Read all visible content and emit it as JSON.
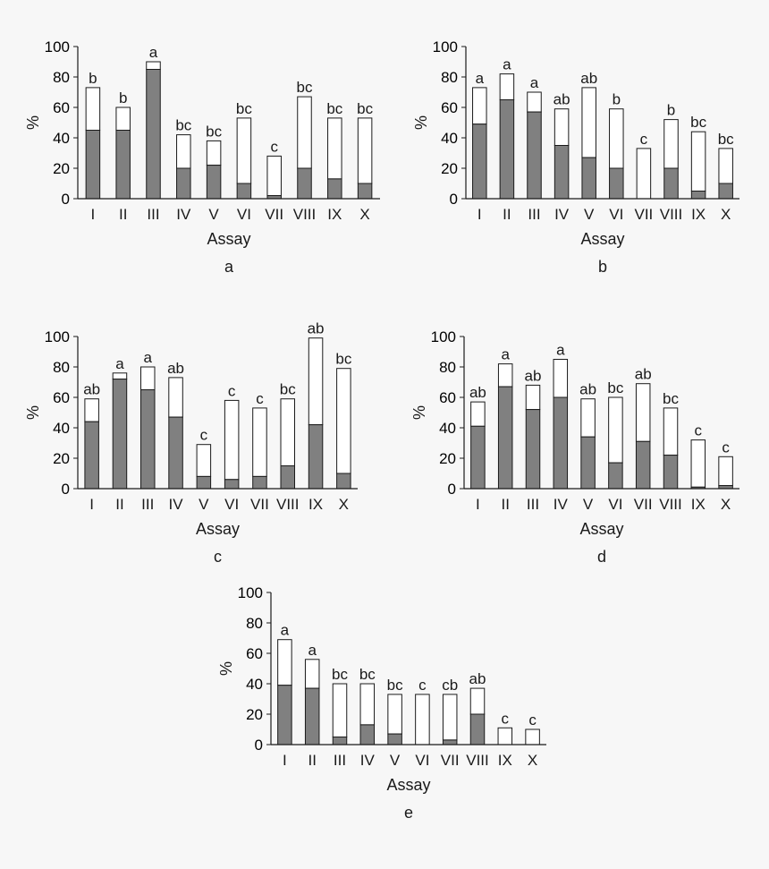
{
  "colors": {
    "background": "#f7f7f7",
    "dark_fill": "#808080",
    "light_fill": "#ffffff",
    "stroke": "#1a1a1a"
  },
  "chart_data": [
    {
      "type": "bar",
      "stacked": true,
      "panel_label": "a",
      "xlabel": "Assay",
      "ylabel": "%",
      "ylim": [
        0,
        100
      ],
      "yticks": [
        0,
        20,
        40,
        60,
        80,
        100
      ],
      "categories": [
        "I",
        "II",
        "III",
        "IV",
        "V",
        "VI",
        "VII",
        "VIII",
        "IX",
        "X"
      ],
      "series": [
        {
          "values": [
            45,
            45,
            85,
            20,
            22,
            10,
            2,
            20,
            13,
            10
          ]
        },
        {
          "values": [
            28,
            15,
            5,
            22,
            16,
            43,
            26,
            47,
            40,
            43
          ]
        }
      ],
      "totals": [
        73,
        60,
        90,
        42,
        38,
        53,
        28,
        67,
        53,
        53
      ],
      "significance_letters": [
        "b",
        "b",
        "a",
        "bc",
        "bc",
        "bc",
        "c",
        "bc",
        "bc",
        "bc"
      ]
    },
    {
      "type": "bar",
      "stacked": true,
      "panel_label": "b",
      "xlabel": "Assay",
      "ylabel": "%",
      "ylim": [
        0,
        100
      ],
      "yticks": [
        0,
        20,
        40,
        60,
        80,
        100
      ],
      "categories": [
        "I",
        "II",
        "III",
        "IV",
        "V",
        "VI",
        "VII",
        "VIII",
        "IX",
        "X"
      ],
      "series": [
        {
          "values": [
            49,
            65,
            57,
            35,
            27,
            20,
            0,
            20,
            5,
            10
          ]
        },
        {
          "values": [
            24,
            17,
            13,
            24,
            46,
            39,
            33,
            32,
            39,
            23
          ]
        }
      ],
      "totals": [
        73,
        82,
        70,
        59,
        73,
        59,
        33,
        52,
        44,
        33
      ],
      "significance_letters": [
        "a",
        "a",
        "a",
        "ab",
        "ab",
        "b",
        "c",
        "b",
        "bc",
        "bc"
      ]
    },
    {
      "type": "bar",
      "stacked": true,
      "panel_label": "c",
      "xlabel": "Assay",
      "ylabel": "%",
      "ylim": [
        0,
        100
      ],
      "yticks": [
        0,
        20,
        40,
        60,
        80,
        100
      ],
      "categories": [
        "I",
        "II",
        "III",
        "IV",
        "V",
        "VI",
        "VII",
        "VIII",
        "IX",
        "X"
      ],
      "series": [
        {
          "values": [
            44,
            72,
            65,
            47,
            8,
            6,
            8,
            15,
            42,
            10
          ]
        },
        {
          "values": [
            15,
            4,
            15,
            26,
            21,
            52,
            45,
            44,
            57,
            69
          ]
        }
      ],
      "totals": [
        59,
        76,
        80,
        73,
        29,
        58,
        53,
        59,
        99,
        79
      ],
      "significance_letters": [
        "ab",
        "a",
        "a",
        "ab",
        "c",
        "c",
        "c",
        "bc",
        "ab",
        "bc"
      ]
    },
    {
      "type": "bar",
      "stacked": true,
      "panel_label": "d",
      "xlabel": "Assay",
      "ylabel": "%",
      "ylim": [
        0,
        100
      ],
      "yticks": [
        0,
        20,
        40,
        60,
        80,
        100
      ],
      "categories": [
        "I",
        "II",
        "III",
        "IV",
        "V",
        "VI",
        "VII",
        "VIII",
        "IX",
        "X"
      ],
      "series": [
        {
          "values": [
            41,
            67,
            52,
            60,
            34,
            17,
            31,
            22,
            1,
            2
          ]
        },
        {
          "values": [
            16,
            15,
            16,
            25,
            25,
            43,
            38,
            31,
            31,
            19
          ]
        }
      ],
      "totals": [
        57,
        82,
        68,
        85,
        59,
        60,
        69,
        53,
        32,
        21
      ],
      "significance_letters": [
        "ab",
        "a",
        "ab",
        "a",
        "ab",
        "bc",
        "ab",
        "bc",
        "c",
        "c"
      ]
    },
    {
      "type": "bar",
      "stacked": true,
      "panel_label": "e",
      "xlabel": "Assay",
      "ylabel": "%",
      "ylim": [
        0,
        100
      ],
      "yticks": [
        0,
        20,
        40,
        60,
        80,
        100
      ],
      "categories": [
        "I",
        "II",
        "III",
        "IV",
        "V",
        "VI",
        "VII",
        "VIII",
        "IX",
        "X"
      ],
      "series": [
        {
          "values": [
            39,
            37,
            5,
            13,
            7,
            0,
            3,
            20,
            0,
            0
          ]
        },
        {
          "values": [
            30,
            19,
            35,
            27,
            26,
            33,
            30,
            17,
            11,
            10
          ]
        }
      ],
      "totals": [
        69,
        56,
        40,
        40,
        33,
        33,
        33,
        37,
        11,
        10
      ],
      "significance_letters": [
        "a",
        "a",
        "bc",
        "bc",
        "bc",
        "c",
        "cb",
        "ab",
        "c",
        "c"
      ]
    }
  ]
}
